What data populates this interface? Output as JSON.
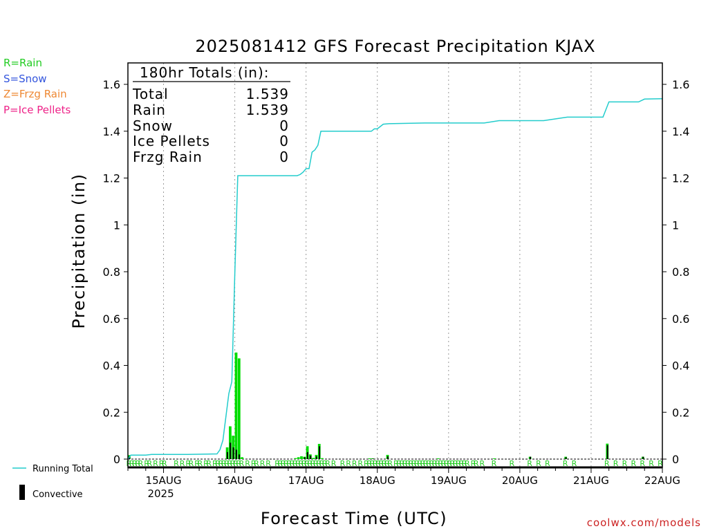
{
  "chart_data": {
    "type": "bar",
    "title": "2025081412 GFS Forecast Precipitation KJAX",
    "xlabel": "Forecast Time (UTC)",
    "ylabel": "Precipitation (in)",
    "ylim": [
      0,
      1.7
    ],
    "xlim_hours": [
      0,
      180
    ],
    "y_ticks": [
      "0",
      "0.2",
      "0.4",
      "0.6",
      "0.8",
      "1",
      "1.2",
      "1.4",
      "1.6"
    ],
    "y_tick_values": [
      0,
      0.2,
      0.4,
      0.6,
      0.8,
      1,
      1.2,
      1.4,
      1.6
    ],
    "x_ticks": [
      {
        "hour": 12,
        "label": "15AUG",
        "sub": "2025"
      },
      {
        "hour": 36,
        "label": "16AUG",
        "sub": ""
      },
      {
        "hour": 60,
        "label": "17AUG",
        "sub": ""
      },
      {
        "hour": 84,
        "label": "18AUG",
        "sub": ""
      },
      {
        "hour": 108,
        "label": "19AUG",
        "sub": ""
      },
      {
        "hour": 132,
        "label": "20AUG",
        "sub": ""
      },
      {
        "hour": 156,
        "label": "21AUG",
        "sub": ""
      },
      {
        "hour": 180,
        "label": "22AUG",
        "sub": ""
      }
    ],
    "grid": "vertical-dotted",
    "precip_type_legend": [
      {
        "label": "R=Rain",
        "color": "#22cc22"
      },
      {
        "label": "S=Snow",
        "color": "#3355dd"
      },
      {
        "label": "Z=Frzg Rain",
        "color": "#ee8833"
      },
      {
        "label": "P=Ice Pellets",
        "color": "#ee2288"
      }
    ],
    "series_legend": [
      {
        "label": "Running Total",
        "color": "#22cccc"
      },
      {
        "label": "Convective",
        "color": "#000000"
      }
    ],
    "totals_box": {
      "heading": "180hr Totals (in):",
      "rows": [
        {
          "label": "Total",
          "value": "1.539"
        },
        {
          "label": "Rain",
          "value": "1.539"
        },
        {
          "label": "Snow",
          "value": "0"
        },
        {
          "label": "Ice Pellets",
          "value": "0"
        },
        {
          "label": "Frzg Rain",
          "value": "0"
        }
      ]
    },
    "series": [
      {
        "name": "Running Total",
        "color": "#22cccc",
        "x": [
          0,
          1,
          3,
          6,
          8,
          20,
          30,
          31,
          32,
          33,
          34,
          35,
          36,
          37,
          57,
          58,
          59,
          60,
          61,
          62,
          63,
          64,
          65,
          66,
          82,
          83,
          84,
          85,
          86,
          88,
          100,
          118,
          120,
          125,
          140,
          148,
          160,
          162,
          172,
          174,
          180
        ],
        "y": [
          0.0,
          0.017,
          0.017,
          0.017,
          0.02,
          0.02,
          0.022,
          0.04,
          0.08,
          0.18,
          0.28,
          0.33,
          0.79,
          1.21,
          1.21,
          1.215,
          1.225,
          1.24,
          1.24,
          1.31,
          1.32,
          1.34,
          1.4,
          1.4,
          1.4,
          1.41,
          1.41,
          1.42,
          1.43,
          1.432,
          1.435,
          1.435,
          1.435,
          1.445,
          1.445,
          1.46,
          1.46,
          1.525,
          1.525,
          1.537,
          1.539
        ]
      },
      {
        "name": "Rain",
        "color": "#00dd00",
        "x": [
          1,
          34,
          35,
          36,
          37,
          38,
          39,
          57,
          58,
          59,
          60,
          61,
          62,
          63,
          64,
          65,
          66,
          82,
          83,
          88,
          105,
          124,
          136,
          148,
          162,
          174
        ],
        "y": [
          0.017,
          0.05,
          0.14,
          0.1,
          0.455,
          0.43,
          0.008,
          0.004,
          0.008,
          0.012,
          0.01,
          0.055,
          0.02,
          0.005,
          0.018,
          0.065,
          0.004,
          0.003,
          0.003,
          0.018,
          0.003,
          0.003,
          0.01,
          0.01,
          0.066,
          0.01
        ]
      },
      {
        "name": "Convective",
        "color": "#000000",
        "x": [
          1,
          34,
          35,
          36,
          37,
          38,
          60,
          61,
          62,
          64,
          65,
          83,
          88,
          136,
          148,
          162,
          174
        ],
        "y": [
          0.012,
          0.03,
          0.07,
          0.05,
          0.04,
          0.02,
          0.008,
          0.03,
          0.015,
          0.012,
          0.055,
          0.002,
          0.012,
          0.01,
          0.008,
          0.06,
          0.01
        ]
      }
    ],
    "precip_type_marks": {
      "letter": "R",
      "hours": [
        1,
        2,
        3,
        4,
        5,
        7,
        8,
        10,
        12,
        13,
        17,
        19,
        21,
        22,
        24,
        25,
        27,
        28,
        30,
        31,
        32,
        33,
        34,
        35,
        36,
        37,
        38,
        39,
        41,
        43,
        44,
        46,
        48,
        51,
        52,
        53,
        54,
        55,
        56,
        57,
        58,
        59,
        60,
        61,
        62,
        63,
        64,
        65,
        66,
        67,
        68,
        70,
        73,
        75,
        77,
        79,
        81,
        82,
        83,
        84,
        85,
        86,
        87,
        88,
        89,
        91,
        92,
        93,
        94,
        95,
        96,
        97,
        98,
        99,
        100,
        101,
        102,
        103,
        104,
        105,
        106,
        107,
        108,
        109,
        110,
        111,
        112,
        113,
        114,
        115,
        117,
        118,
        120,
        124,
        130,
        136,
        139,
        142,
        148,
        151,
        162,
        165,
        168,
        171,
        174,
        177,
        180
      ]
    }
  },
  "credit": "coolwx.com/models"
}
